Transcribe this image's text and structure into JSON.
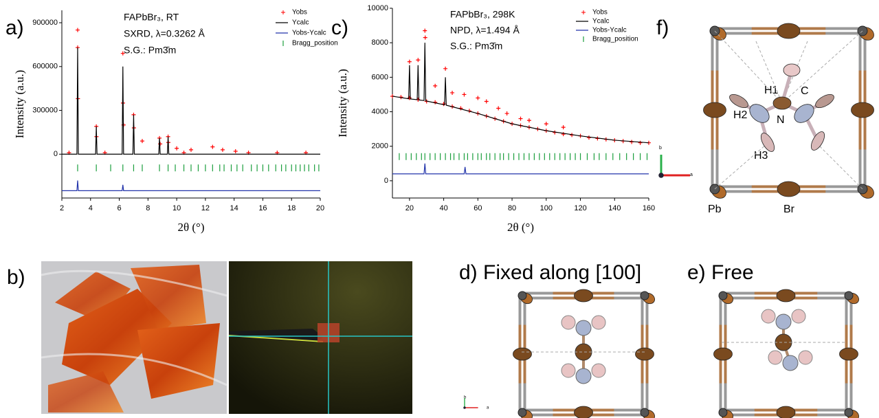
{
  "chart_data": [
    {
      "type": "line",
      "panel": "a)",
      "xlabel": "2θ (°)",
      "ylabel": "Intensity (a.u.)",
      "annotations": [
        "FAPbBr₃, RT",
        "SXRD, λ=0.3262 Å",
        "S.G.: Pm3̄m"
      ],
      "xlim": [
        2,
        20
      ],
      "xticks": [
        2,
        4,
        6,
        8,
        10,
        12,
        14,
        16,
        18,
        20
      ],
      "ylim": [
        -300000,
        985000
      ],
      "yticks": [
        0,
        300000,
        600000,
        900000
      ],
      "series": [
        {
          "name": "Yobs",
          "kind": "scatter",
          "color": "#ff0000",
          "x": [
            3.1,
            3.1,
            3.12,
            4.4,
            4.41,
            6.25,
            6.26,
            6.3,
            7.0,
            7.02,
            7.6,
            8.8,
            8.85,
            9.4,
            9.42,
            10.0,
            11.0,
            12.5,
            13.2,
            14.1,
            2.5,
            5,
            10.5,
            15,
            17,
            19
          ],
          "values": [
            850000,
            730000,
            380000,
            190000,
            120000,
            690000,
            350000,
            200000,
            270000,
            180000,
            90000,
            110000,
            70000,
            120000,
            80000,
            40000,
            30000,
            50000,
            30000,
            20000,
            10000,
            10000,
            10000,
            10000,
            10000,
            10000
          ]
        },
        {
          "name": "Ycalc",
          "kind": "line",
          "color": "#000000",
          "x": [
            2,
            3.05,
            3.1,
            3.15,
            4.35,
            4.4,
            4.45,
            6.2,
            6.25,
            6.3,
            6.95,
            7.0,
            7.05,
            8.75,
            8.8,
            8.85,
            9.35,
            9.4,
            9.45,
            20
          ],
          "values": [
            0,
            0,
            730000,
            0,
            0,
            190000,
            0,
            0,
            600000,
            0,
            0,
            270000,
            0,
            0,
            110000,
            0,
            0,
            120000,
            0,
            0
          ]
        },
        {
          "name": "Yobs-Ycalc",
          "kind": "line",
          "color": "#2233aa",
          "x": [
            2,
            3.05,
            3.1,
            3.15,
            6.2,
            6.25,
            6.3,
            20
          ],
          "values": [
            -250000,
            -250000,
            -180000,
            -250000,
            -250000,
            -210000,
            -250000,
            -250000
          ]
        },
        {
          "name": "Bragg_position",
          "kind": "bragg",
          "color": "#1a9e3c",
          "x": [
            3.1,
            4.4,
            5.4,
            6.25,
            7.0,
            7.6,
            8.8,
            9.4,
            9.9,
            10.5,
            11.0,
            11.5,
            12.0,
            12.5,
            13.0,
            13.3,
            13.8,
            14.2,
            14.6,
            15.2,
            15.6,
            16.0,
            16.4,
            16.9,
            17.3,
            17.6,
            18.0,
            18.3,
            18.6,
            18.9,
            19.2,
            19.6,
            19.9
          ],
          "values": [
            -94000,
            -94000,
            -94000,
            -94000,
            -94000,
            -94000,
            -94000,
            -94000,
            -94000,
            -94000,
            -94000,
            -94000,
            -94000,
            -94000,
            -94000,
            -94000,
            -94000,
            -94000,
            -94000,
            -94000,
            -94000,
            -94000,
            -94000,
            -94000,
            -94000,
            -94000,
            -94000,
            -94000,
            -94000,
            -94000,
            -94000,
            -94000,
            -94000
          ]
        }
      ]
    },
    {
      "type": "line",
      "panel": "c)",
      "xlabel": "2θ (°)",
      "ylabel": "Intensity (a.u.)",
      "annotations": [
        "FAPbBr₃, 298K",
        "NPD, λ=1.494 Å",
        "S.G.: Pm3̄m"
      ],
      "xlim": [
        10,
        160
      ],
      "xticks": [
        20,
        40,
        60,
        80,
        100,
        120,
        140,
        160
      ],
      "ylim": [
        -1000,
        10000
      ],
      "yticks": [
        0,
        2000,
        4000,
        6000,
        8000,
        10000
      ],
      "series": [
        {
          "name": "Yobs",
          "kind": "scatter",
          "color": "#ff0000",
          "x": [
            10,
            15,
            20,
            25,
            30,
            35,
            40,
            45,
            50,
            55,
            60,
            65,
            70,
            75,
            80,
            85,
            90,
            95,
            100,
            105,
            110,
            115,
            120,
            125,
            130,
            135,
            140,
            145,
            150,
            155,
            160,
            20,
            25,
            29,
            29.2,
            35,
            41,
            45,
            52,
            60,
            65,
            72,
            77,
            85,
            90,
            100,
            110
          ],
          "values": [
            4900,
            4850,
            4800,
            4700,
            4600,
            4550,
            4450,
            4300,
            4200,
            4050,
            3900,
            3750,
            3600,
            3450,
            3300,
            3200,
            3100,
            3000,
            2900,
            2800,
            2700,
            2650,
            2600,
            2500,
            2450,
            2400,
            2350,
            2300,
            2250,
            2200,
            2200,
            6900,
            7000,
            8700,
            8300,
            5500,
            6500,
            5100,
            5000,
            4800,
            4600,
            4200,
            3900,
            3600,
            3500,
            3300,
            3100
          ]
        },
        {
          "name": "Ycalc",
          "kind": "line",
          "color": "#000000",
          "x": [
            10,
            19.5,
            20,
            20.5,
            24.5,
            25,
            25.5,
            28.5,
            29,
            29.5,
            40.5,
            41,
            41.5,
            60,
            80,
            100,
            120,
            140,
            160
          ],
          "values": [
            4900,
            4750,
            6700,
            4740,
            4700,
            6700,
            4680,
            4650,
            8000,
            4630,
            4400,
            6000,
            4380,
            3900,
            3300,
            2900,
            2600,
            2350,
            2200
          ]
        },
        {
          "name": "Yobs-Ycalc",
          "kind": "line",
          "color": "#2233aa",
          "x": [
            10,
            28.5,
            29,
            29.5,
            52,
            52.5,
            53,
            160
          ],
          "values": [
            400,
            400,
            1000,
            400,
            400,
            800,
            400,
            400
          ]
        },
        {
          "name": "Bragg_position",
          "kind": "bragg",
          "color": "#1a9e3c",
          "x": [
            14,
            18,
            21,
            24,
            27,
            29,
            32,
            35,
            38,
            41,
            44,
            46,
            49,
            52,
            54,
            57,
            60,
            62,
            65,
            67,
            70,
            73,
            75,
            78,
            81,
            84,
            87,
            90,
            93,
            96,
            99,
            102,
            105,
            108,
            111,
            114,
            117,
            120,
            124,
            128,
            131,
            135,
            139,
            143,
            147,
            151,
            155,
            159
          ],
          "values": [
            1400,
            1400,
            1400,
            1400,
            1400,
            1400,
            1400,
            1400,
            1400,
            1400,
            1400,
            1400,
            1400,
            1400,
            1400,
            1400,
            1400,
            1400,
            1400,
            1400,
            1400,
            1400,
            1400,
            1400,
            1400,
            1400,
            1400,
            1400,
            1400,
            1400,
            1400,
            1400,
            1400,
            1400,
            1400,
            1400,
            1400,
            1400,
            1400,
            1400,
            1400,
            1400,
            1400,
            1400,
            1400,
            1400,
            1400,
            1400
          ]
        }
      ]
    }
  ],
  "panels": {
    "b": "b)",
    "d": "d) Fixed along [100]",
    "e": "e) Free",
    "f": "f)"
  },
  "atoms": {
    "h1": "H1",
    "c": "C",
    "h2": "H2",
    "n": "N",
    "h3": "H3",
    "pb": "Pb",
    "br": "Br"
  },
  "orientation_labels": [
    "b",
    "a"
  ]
}
